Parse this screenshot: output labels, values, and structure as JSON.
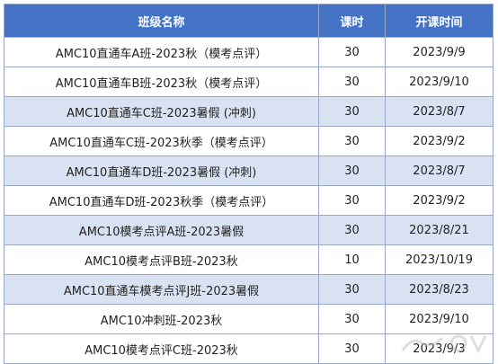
{
  "table": {
    "headers": [
      "班级名称",
      "课时",
      "开课时间"
    ],
    "rows": [
      {
        "name": "AMC10直通车A班-2023秋（模考点评）",
        "hours": "30",
        "start": "2023/9/9",
        "highlight": false
      },
      {
        "name": "AMC10直通车B班-2023秋（模考点评）",
        "hours": "30",
        "start": "2023/9/10",
        "highlight": false
      },
      {
        "name": "AMC10直通车C班-2023暑假 (冲刺)",
        "hours": "30",
        "start": "2023/8/7",
        "highlight": true
      },
      {
        "name": "AMC10直通车C班-2023秋季（模考点评）",
        "hours": "30",
        "start": "2023/9/2",
        "highlight": false
      },
      {
        "name": "AMC10直通车D班-2023暑假 (冲刺)",
        "hours": "30",
        "start": "2023/8/7",
        "highlight": true
      },
      {
        "name": "AMC10直通车D班-2023秋季（模考点评）",
        "hours": "30",
        "start": "2023/9/2",
        "highlight": false
      },
      {
        "name": "AMC10模考点评A班-2023暑假",
        "hours": "30",
        "start": "2023/8/21",
        "highlight": true
      },
      {
        "name": "AMC10模考点评B班-2023秋",
        "hours": "10",
        "start": "2023/10/19",
        "highlight": false
      },
      {
        "name": "AMC10直通车模考点评J班-2023暑假",
        "hours": "30",
        "start": "2023/8/23",
        "highlight": true
      },
      {
        "name": "AMC10冲刺班-2023秋",
        "hours": "30",
        "start": "2023/9/10",
        "highlight": false
      },
      {
        "name": "AMC10模考点评C班-2023秋",
        "hours": "30",
        "start": "2023/9/3",
        "highlight": false
      }
    ]
  },
  "colors": {
    "header_bg": "#4472c4",
    "highlight_row_bg": "#d9e2f3",
    "border": "#9aa8c8"
  },
  "watermark": {
    "icon": "watermark-logo"
  }
}
